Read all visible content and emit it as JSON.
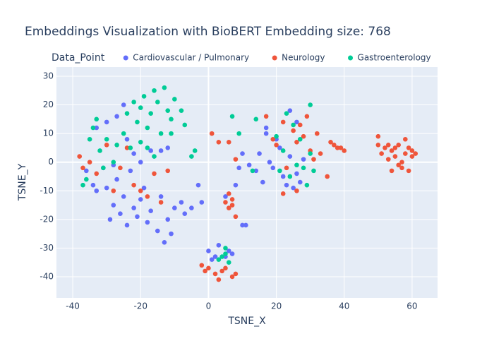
{
  "chart_data": {
    "type": "scatter",
    "title": "Embeddings Visualization with BioBERT Embedding size: 768",
    "x_label": "TSNE_X",
    "y_label": "TSNE_Y",
    "legend_title": "Data_Point",
    "legend_position": "top",
    "xlim": [
      -44.8,
      67.5
    ],
    "ylim": [
      -47.4,
      33.2
    ],
    "xticks": [
      -40,
      -20,
      0,
      20,
      40,
      60
    ],
    "yticks": [
      -40,
      -30,
      -20,
      -10,
      0,
      10,
      20,
      30
    ],
    "grid": true,
    "series": [
      {
        "name": "Cardiovascular / Pulmonary",
        "color": "#636efa",
        "x": [
          -36,
          -34,
          -33,
          -31,
          -30,
          -29,
          -28,
          -27,
          -26,
          -25,
          -24,
          -23,
          -22,
          -21,
          -20,
          -19,
          -18,
          -17,
          -15,
          -14,
          -13,
          -12,
          -11,
          -10,
          -8,
          -7,
          -5,
          -3,
          -2,
          -30,
          -27,
          -25,
          -24,
          -22,
          -20,
          -17,
          -14,
          -12,
          -33,
          -28,
          14,
          15,
          16,
          17,
          18,
          19,
          20,
          21,
          22,
          23,
          24,
          25,
          26,
          27,
          28,
          24,
          26,
          17,
          0,
          1,
          2,
          3,
          5,
          6,
          7,
          5,
          8,
          10,
          11,
          9,
          10,
          12
        ],
        "y": [
          -3,
          -8,
          -10,
          -2,
          -9,
          -20,
          -15,
          -6,
          -18,
          -12,
          -22,
          -3,
          -16,
          -19,
          -13,
          -9,
          -21,
          -17,
          -24,
          -12,
          -28,
          -20,
          -25,
          -16,
          -14,
          -18,
          -16,
          -8,
          -14,
          14,
          16,
          20,
          8,
          3,
          0,
          4,
          4,
          5,
          12,
          -1,
          -3,
          3,
          -7,
          12,
          0,
          -2,
          8,
          5,
          -5,
          -8,
          2,
          -9,
          -4,
          -7,
          1,
          18,
          14,
          10,
          -31,
          -34,
          -33,
          -29,
          -33,
          -31,
          -32,
          -12,
          -8,
          -22,
          -22,
          -2,
          3,
          -1
        ]
      },
      {
        "name": "Neurology",
        "color": "#EF553B",
        "x": [
          -38,
          -37,
          -35,
          -33,
          -30,
          -28,
          -26,
          -24,
          -22,
          -20,
          -18,
          -16,
          -14,
          -12,
          1,
          3,
          6,
          8,
          7,
          6,
          5,
          7,
          6,
          8,
          -2,
          0,
          2,
          3,
          4,
          5,
          7,
          8,
          -1,
          17,
          19,
          20,
          22,
          23,
          25,
          26,
          27,
          28,
          29,
          30,
          31,
          32,
          33,
          35,
          22,
          26,
          37,
          38,
          39,
          40,
          36,
          50,
          51,
          52,
          53,
          54,
          55,
          56,
          57,
          58,
          59,
          60,
          57,
          55,
          58,
          60,
          53,
          56,
          59,
          61,
          50,
          54
        ],
        "y": [
          2,
          -2,
          0,
          -4,
          6,
          -10,
          -2,
          5,
          -8,
          -10,
          -12,
          -4,
          -14,
          -3,
          10,
          7,
          7,
          1,
          -15,
          -16,
          -14,
          -13,
          -11,
          -19,
          -36,
          -37,
          -39,
          -41,
          -38,
          -37,
          -40,
          -39,
          -38,
          16,
          8,
          6,
          14,
          -2,
          11,
          7,
          13,
          9,
          16,
          4,
          1,
          10,
          3,
          -5,
          -11,
          -10,
          6,
          5,
          5,
          4,
          7,
          6,
          3,
          5,
          1,
          4,
          2,
          6,
          0,
          3,
          5,
          2,
          -2,
          5,
          8,
          4,
          6,
          -1,
          -3,
          3,
          9,
          -3
        ]
      },
      {
        "name": "Gastroenterology",
        "color": "#00cc96",
        "x": [
          -24,
          -22,
          -21,
          -20,
          -19,
          -18,
          -17,
          -16,
          -15,
          -14,
          -13,
          -12,
          -11,
          -10,
          -8,
          -7,
          -20,
          -18,
          -16,
          -11,
          -37,
          -36,
          -35,
          -34,
          -33,
          -32,
          -31,
          -30,
          -28,
          -27,
          -25,
          -23,
          -5,
          -4,
          7,
          9,
          13,
          14,
          20,
          21,
          22,
          23,
          24,
          25,
          26,
          27,
          28,
          29,
          30,
          31,
          30,
          3,
          4,
          5,
          6,
          5
        ],
        "y": [
          17,
          21,
          14,
          19,
          23,
          12,
          17,
          25,
          21,
          10,
          26,
          18,
          15,
          22,
          18,
          13,
          7,
          5,
          2,
          10,
          -8,
          -6,
          8,
          12,
          15,
          4,
          -2,
          8,
          0,
          6,
          10,
          5,
          2,
          4,
          16,
          10,
          -3,
          15,
          9,
          -3,
          4,
          17,
          -5,
          13,
          -1,
          8,
          -2,
          -8,
          20,
          -3,
          3,
          -34,
          -33,
          -32,
          -35,
          -30
        ]
      }
    ]
  }
}
